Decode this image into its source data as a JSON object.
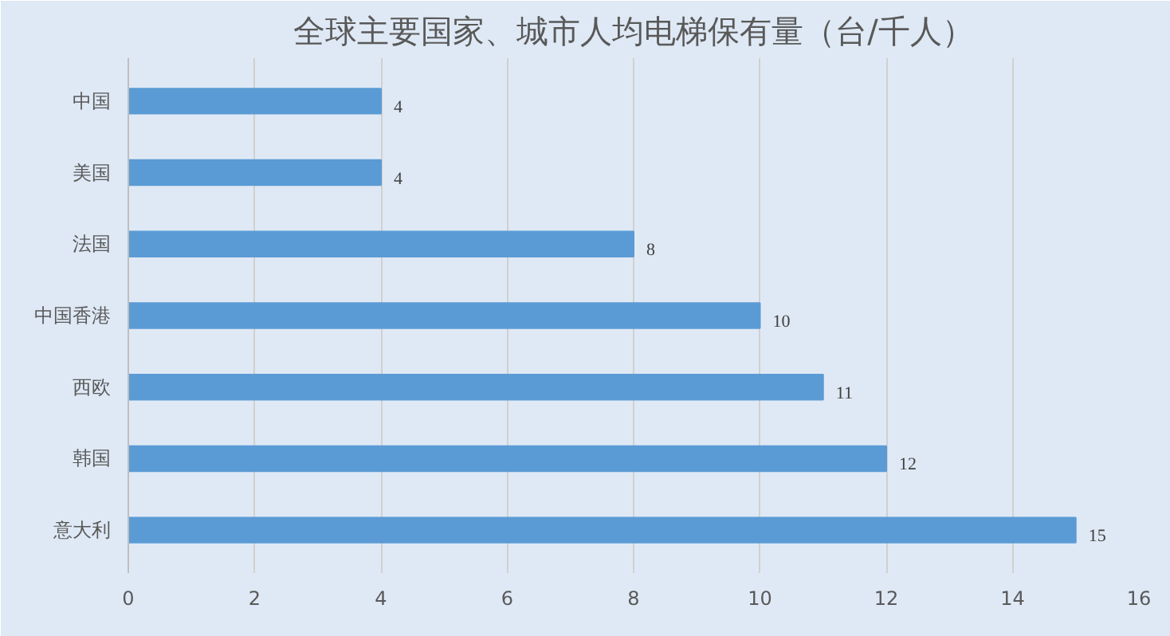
{
  "chart_data": {
    "type": "bar",
    "orientation": "horizontal",
    "title": "全球主要国家、城市人均电梯保有量（台/千人）",
    "categories": [
      "中国",
      "美国",
      "法国",
      "中国香港",
      "西欧",
      "韩国",
      "意大利"
    ],
    "values": [
      4,
      4,
      8,
      10,
      11,
      12,
      15
    ],
    "color": "#5b9bd5",
    "xlim": [
      0,
      16
    ],
    "xticks": [
      0,
      2,
      4,
      6,
      8,
      10,
      12,
      14,
      16
    ],
    "grid": "x",
    "data_labels": true
  }
}
